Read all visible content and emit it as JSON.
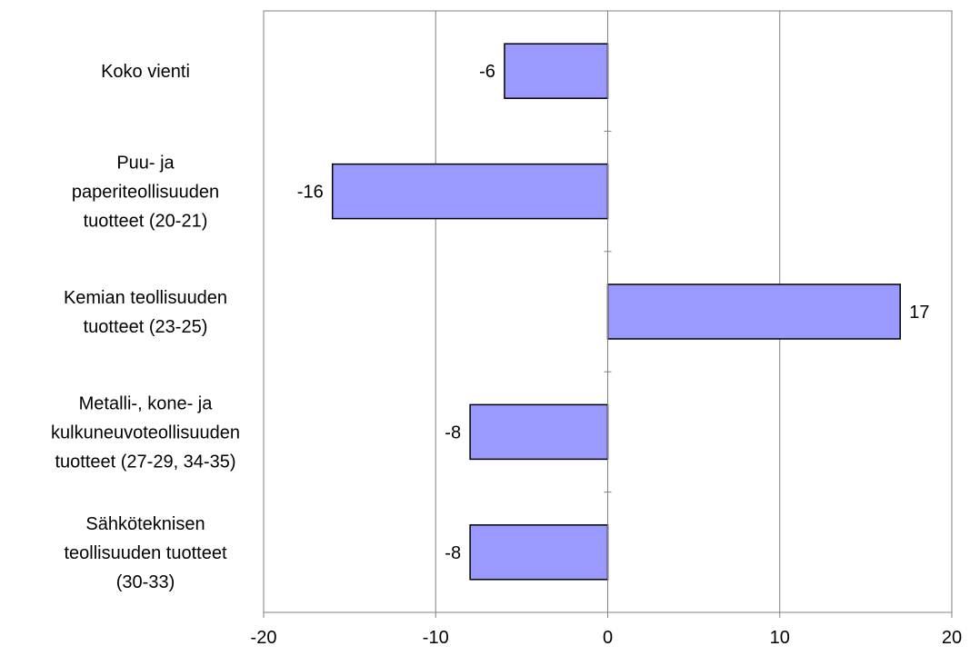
{
  "chart_data": {
    "type": "bar",
    "orientation": "horizontal",
    "categories": [
      [
        "Koko vienti"
      ],
      [
        "Puu- ja",
        "paperiteollisuuden",
        "tuotteet (20-21)"
      ],
      [
        "Kemian teollisuuden",
        "tuotteet (23-25)"
      ],
      [
        "Metalli-, kone- ja",
        "kulkuneuvoteollisuuden",
        "tuotteet (27-29, 34-35)"
      ],
      [
        "Sähköteknisen",
        "teollisuuden tuotteet",
        "(30-33)"
      ]
    ],
    "values": [
      -6,
      -16,
      17,
      -8,
      -8
    ],
    "data_labels": [
      "-6",
      "-16",
      "17",
      "-8",
      "-8"
    ],
    "xlim": [
      -20,
      20
    ],
    "xticks": [
      -20,
      -10,
      0,
      10,
      20
    ],
    "xtick_labels": [
      "-20",
      "-10",
      "0",
      "10",
      "20"
    ],
    "grid": "vertical",
    "legend": "none",
    "colors": {
      "bar_fill": "#9999ff",
      "bar_stroke": "#000000",
      "gridline": "#808080",
      "axis": "#808080"
    }
  }
}
